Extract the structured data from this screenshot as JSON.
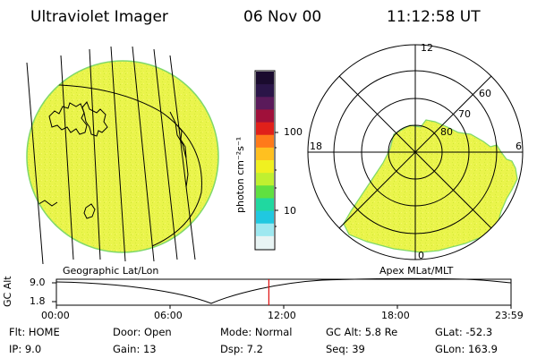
{
  "header": {
    "title": "Ultraviolet Imager",
    "date": "06 Nov 00",
    "time": "11:12:58 UT"
  },
  "colorbar": {
    "unit_label": "photon cm⁻²s⁻¹",
    "ticks": [
      "100",
      "10"
    ],
    "colors": [
      "#1a0b2e",
      "#2a1548",
      "#5a1a5a",
      "#a0103a",
      "#e0201a",
      "#ff7a1a",
      "#ffc020",
      "#f0f020",
      "#c0f030",
      "#60e040",
      "#20d8a0",
      "#20c8e0",
      "#9ee8f0",
      "#e8f4f4"
    ]
  },
  "left_panel": {
    "caption": "Geographic Lat/Lon",
    "disk_color": "#eaf44c"
  },
  "right_panel": {
    "caption": "Apex MLat/MLT",
    "mlt_labels": [
      "12",
      "18",
      "6",
      "0"
    ],
    "lat_labels": [
      "60",
      "70",
      "80"
    ],
    "fill_color": "#eaf44c"
  },
  "altitude_plot": {
    "axis_label": "GC Alt",
    "y_ticks": [
      "9.0",
      "1.8"
    ],
    "x_ticks": [
      "00:00",
      "06:00",
      "12:00",
      "18:00",
      "23:59"
    ],
    "current_time_fraction": 0.4673
  },
  "status": {
    "flt": "Flt: HOME",
    "ip": "IP:  9.0",
    "door": "Door: Open",
    "gain": "Gain: 13",
    "mode": "Mode: Normal",
    "dsp": "Dsp:     7.2",
    "gc_alt": "GC Alt: 5.8 Re",
    "seq": "Seq: 39",
    "glat": "GLat: -52.3",
    "glon": "GLon: 163.9"
  }
}
